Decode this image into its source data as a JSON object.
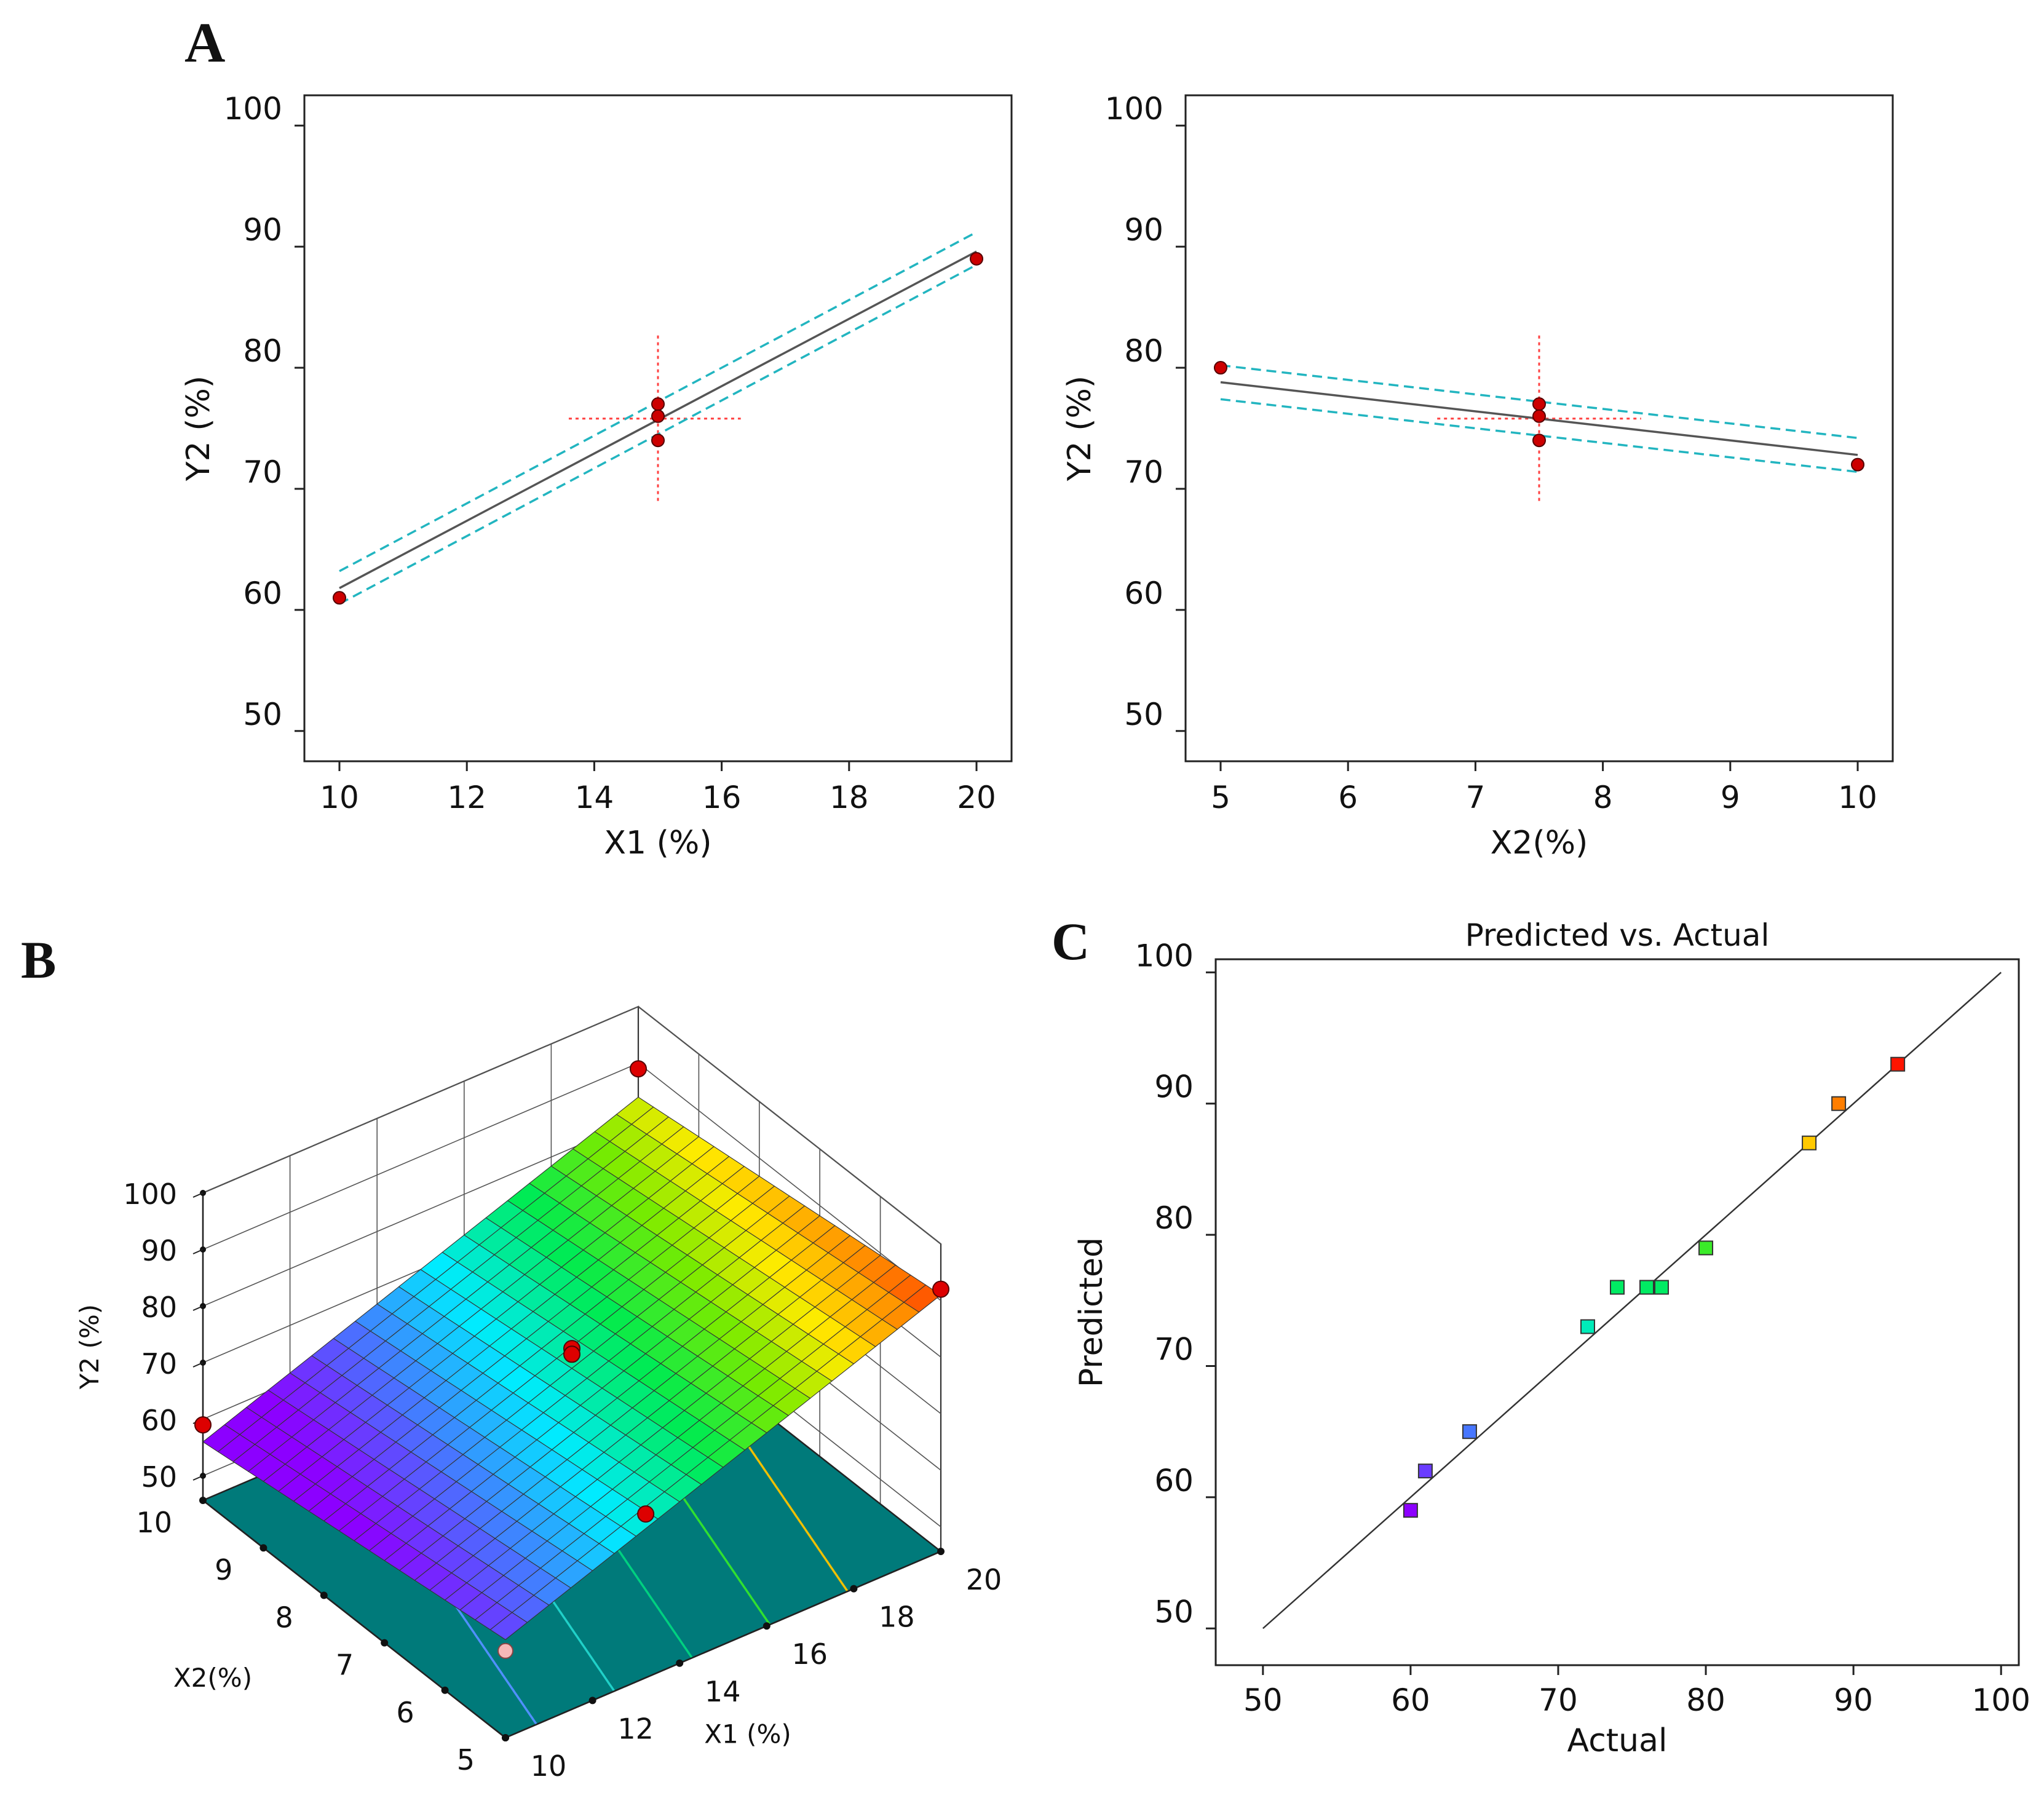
{
  "panel_letters": {
    "a": "A",
    "b": "B",
    "c": "C"
  },
  "chart_data": [
    {
      "id": "a1",
      "type": "line",
      "xlabel": "X1  (%)",
      "ylabel": "Y2 (%)",
      "xlim": [
        9.45,
        20.55
      ],
      "ylim": [
        47.5,
        102.5
      ],
      "xticks": [
        10,
        12,
        14,
        16,
        18,
        20
      ],
      "yticks": [
        50,
        60,
        70,
        80,
        90,
        100
      ],
      "fit": {
        "x": [
          10,
          20
        ],
        "y": [
          61.8,
          89.6
        ]
      },
      "ci_upper": {
        "x": [
          10,
          20
        ],
        "y": [
          63.2,
          91.2
        ]
      },
      "ci_lower": {
        "x": [
          10,
          20
        ],
        "y": [
          60.5,
          88.5
        ]
      },
      "center_cross": {
        "x": 15,
        "y": 75.8,
        "xspan": [
          13.6,
          16.3
        ],
        "yspan": [
          69.0,
          82.8
        ]
      },
      "points": [
        {
          "x": 10,
          "y": 61
        },
        {
          "x": 15,
          "y": 77
        },
        {
          "x": 15,
          "y": 76
        },
        {
          "x": 15,
          "y": 74
        },
        {
          "x": 20,
          "y": 89
        }
      ],
      "colors": {
        "fit": "#555555",
        "ci": "#22b5c0",
        "point": "#cc0000",
        "cross": "#ff4040"
      }
    },
    {
      "id": "a2",
      "type": "line",
      "xlabel": "X2(%)",
      "ylabel": "Y2 (%)",
      "xlim": [
        4.725,
        10.275
      ],
      "ylim": [
        47.5,
        102.5
      ],
      "xticks": [
        5,
        6,
        7,
        8,
        9,
        10
      ],
      "yticks": [
        50,
        60,
        70,
        80,
        90,
        100
      ],
      "fit": {
        "x": [
          5,
          10
        ],
        "y": [
          78.8,
          72.8
        ]
      },
      "ci_upper": {
        "x": [
          5,
          10
        ],
        "y": [
          80.2,
          74.2
        ]
      },
      "ci_lower": {
        "x": [
          5,
          10
        ],
        "y": [
          77.4,
          71.4
        ]
      },
      "center_cross": {
        "x": 7.5,
        "y": 75.8,
        "xspan": [
          6.7,
          8.3
        ],
        "yspan": [
          69.0,
          82.8
        ]
      },
      "points": [
        {
          "x": 5,
          "y": 80
        },
        {
          "x": 7.5,
          "y": 77
        },
        {
          "x": 7.5,
          "y": 76
        },
        {
          "x": 7.5,
          "y": 74
        },
        {
          "x": 10,
          "y": 72
        }
      ],
      "colors": {
        "fit": "#555555",
        "ci": "#22b5c0",
        "point": "#cc0000",
        "cross": "#ff4040"
      }
    },
    {
      "id": "b",
      "type": "surface",
      "xlabel": "X1  (%)",
      "ylabel": "X2(%)",
      "zlabel": "Y2 (%)",
      "x_range": [
        10,
        20
      ],
      "y_range": [
        5,
        10
      ],
      "z_range": [
        50,
        100
      ],
      "xticks": [
        10,
        12,
        14,
        16,
        18,
        20
      ],
      "yticks": [
        5,
        6,
        7,
        8,
        9,
        10
      ],
      "zticks": [
        50,
        60,
        70,
        80,
        90,
        100
      ],
      "surface_corners": [
        {
          "x": 10,
          "y": 10,
          "z": 56
        },
        {
          "x": 20,
          "y": 10,
          "z": 84
        },
        {
          "x": 10,
          "y": 5,
          "z": 63
        },
        {
          "x": 20,
          "y": 5,
          "z": 91
        }
      ],
      "grid_divisions": 20,
      "color_range": [
        60,
        92
      ],
      "floor_color": "#007a7a",
      "contour_levels": [
        {
          "z": 65,
          "color": "#5090ff"
        },
        {
          "z": 70,
          "color": "#20d0c8"
        },
        {
          "z": 75,
          "color": "#00d080"
        },
        {
          "z": 80,
          "color": "#30e030"
        },
        {
          "z": 85,
          "color": "#f0c000"
        }
      ],
      "design_points": [
        {
          "x": 10,
          "y": 10,
          "z": 59,
          "above": true
        },
        {
          "x": 20,
          "y": 10,
          "z": 89,
          "above": true
        },
        {
          "x": 10,
          "y": 5,
          "z": 61,
          "above": false
        },
        {
          "x": 20,
          "y": 5,
          "z": 92,
          "above": true
        },
        {
          "x": 15,
          "y": 7.5,
          "z": 77,
          "above": true
        },
        {
          "x": 15,
          "y": 7.5,
          "z": 76,
          "above": true
        },
        {
          "x": 15,
          "y": 7.5,
          "z": 74,
          "above": false
        },
        {
          "x": 13.5,
          "y": 5.2,
          "z": 72,
          "above": true
        }
      ]
    },
    {
      "id": "c",
      "type": "scatter",
      "title": "Predicted vs. Actual",
      "xlabel": "Actual",
      "ylabel": "Predicted",
      "xlim": [
        46.8,
        101.2
      ],
      "ylim": [
        47.2,
        101.0
      ],
      "xticks": [
        50,
        60,
        70,
        80,
        90,
        100
      ],
      "yticks": [
        50,
        60,
        70,
        80,
        90,
        100
      ],
      "reference_line": {
        "x": [
          50,
          100
        ],
        "y": [
          50,
          100
        ]
      },
      "color_range": [
        59,
        93
      ],
      "points": [
        {
          "x": 60,
          "y": 59
        },
        {
          "x": 61,
          "y": 62
        },
        {
          "x": 64,
          "y": 65
        },
        {
          "x": 72,
          "y": 73
        },
        {
          "x": 74,
          "y": 76
        },
        {
          "x": 76,
          "y": 76
        },
        {
          "x": 77,
          "y": 76
        },
        {
          "x": 80,
          "y": 79
        },
        {
          "x": 87,
          "y": 87
        },
        {
          "x": 89,
          "y": 90
        },
        {
          "x": 93,
          "y": 93
        }
      ]
    }
  ]
}
